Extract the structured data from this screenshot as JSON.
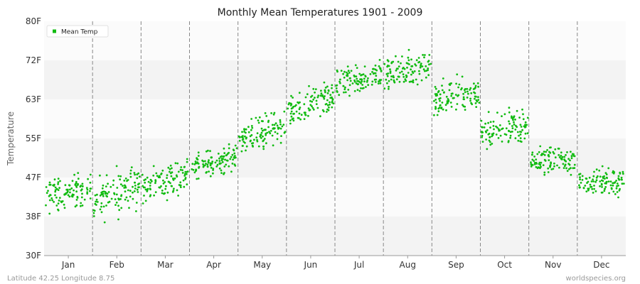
{
  "chart_data": {
    "type": "scatter",
    "title": "Monthly Mean Temperatures 1901 - 2009",
    "ylabel": "Temperature",
    "xlabel": "",
    "ylim": [
      30,
      80
    ],
    "y_ticks": [
      "30F",
      "38F",
      "47F",
      "55F",
      "63F",
      "72F",
      "80F"
    ],
    "y_tick_values": [
      30,
      38.33,
      46.67,
      55,
      63.33,
      71.67,
      80
    ],
    "categories": [
      "Jan",
      "Feb",
      "Mar",
      "Apr",
      "May",
      "Jun",
      "Jul",
      "Aug",
      "Sep",
      "Oct",
      "Nov",
      "Dec"
    ],
    "grid": true,
    "legend_position": "top-left",
    "series": [
      {
        "name": "Mean Temp",
        "color": "#11bb11",
        "points_per_month": 109,
        "month_start_values": [
          42.5,
          42.0,
          44.5,
          49.0,
          54.5,
          60.0,
          66.5,
          68.5,
          63.5,
          56.5,
          50.0,
          45.5
        ],
        "month_end_values": [
          44.5,
          45.0,
          47.5,
          51.0,
          58.0,
          64.0,
          68.5,
          70.5,
          64.5,
          58.0,
          50.5,
          46.0
        ],
        "spread": [
          5.0,
          7.0,
          5.0,
          4.0,
          5.0,
          5.0,
          5.0,
          5.0,
          5.5,
          5.5,
          4.5,
          4.5
        ]
      }
    ]
  },
  "legend": {
    "label": "Mean Temp"
  },
  "footer": {
    "left": "Latitude 42.25 Longitude 8.75",
    "right": "worldspecies.org"
  }
}
